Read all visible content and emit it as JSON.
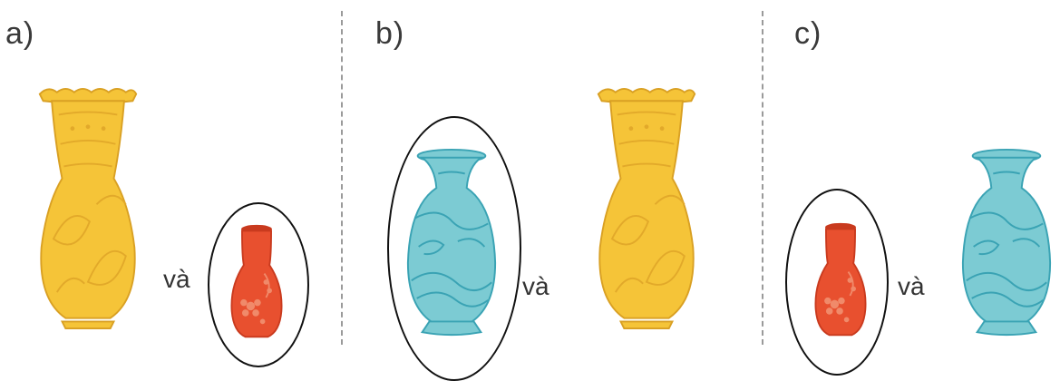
{
  "panels": [
    {
      "label": "a)",
      "connector": "và"
    },
    {
      "label": "b)",
      "connector": "và"
    },
    {
      "label": "c)",
      "connector": "và"
    }
  ],
  "colors": {
    "yellow_vase": "#F5C438",
    "yellow_vase_pattern": "#E2A92A",
    "blue_vase": "#7CCBD3",
    "blue_vase_pattern": "#3AA3B4",
    "red_vase": "#E8502F",
    "red_vase_pattern": "#F08A6A",
    "ellipse": "#111111",
    "divider": "#9a9a9a"
  },
  "icons": [
    "yellow-tall-vase",
    "blue-vase",
    "red-small-vase",
    "selection-ellipse"
  ]
}
